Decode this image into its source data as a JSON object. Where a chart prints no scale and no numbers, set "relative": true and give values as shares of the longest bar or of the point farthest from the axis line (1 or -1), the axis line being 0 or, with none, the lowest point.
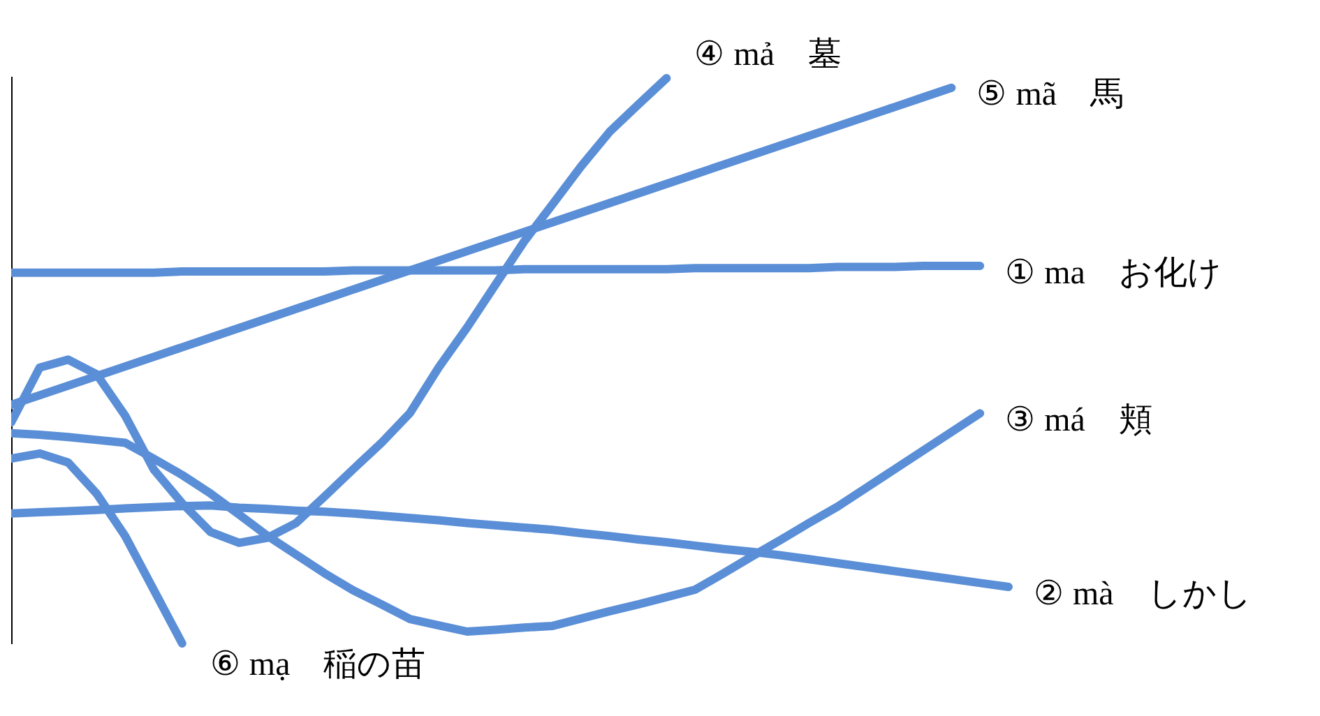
{
  "chart_data": {
    "type": "line",
    "relative": true,
    "tick_labels": false,
    "grid": false,
    "legend": false,
    "marker": "none",
    "line_style": "solid",
    "categories": [
      null,
      null,
      null,
      null,
      null,
      null,
      null,
      null,
      null,
      null,
      null,
      null,
      null,
      null,
      null,
      null,
      null,
      null,
      null,
      null,
      null,
      null,
      null,
      null,
      null,
      null,
      null,
      null,
      null,
      null,
      null,
      null,
      null,
      null,
      null,
      null
    ],
    "series": [
      {
        "name": "① ma　お化け",
        "color": "#5a8ed6",
        "values": [
          0.656,
          0.656,
          0.656,
          0.656,
          0.656,
          0.656,
          0.658,
          0.658,
          0.658,
          0.658,
          0.658,
          0.658,
          0.66,
          0.66,
          0.66,
          0.66,
          0.66,
          0.66,
          0.662,
          0.662,
          0.662,
          0.662,
          0.662,
          0.662,
          0.664,
          0.664,
          0.664,
          0.664,
          0.664,
          0.666,
          0.666,
          0.666,
          0.668,
          0.668,
          0.668,
          null
        ]
      },
      {
        "name": "② mà　しかし",
        "color": "#5a8ed6",
        "values": [
          0.23,
          0.232,
          0.234,
          0.236,
          0.239,
          0.241,
          0.243,
          0.244,
          0.24,
          0.238,
          0.235,
          0.233,
          0.23,
          0.226,
          0.222,
          0.218,
          0.213,
          0.209,
          0.205,
          0.201,
          0.195,
          0.19,
          0.184,
          0.179,
          0.173,
          0.167,
          0.162,
          0.156,
          0.149,
          0.142,
          0.135,
          0.128,
          0.121,
          0.114,
          0.107,
          0.1
        ]
      },
      {
        "name": "③ má　頬",
        "color": "#5a8ed6",
        "values": [
          0.372,
          0.369,
          0.365,
          0.36,
          0.355,
          0.327,
          0.298,
          0.265,
          0.228,
          0.19,
          0.157,
          0.124,
          0.094,
          0.069,
          0.043,
          0.032,
          0.021,
          0.024,
          0.028,
          0.031,
          0.044,
          0.057,
          0.069,
          0.082,
          0.095,
          0.124,
          0.154,
          0.183,
          0.213,
          0.242,
          0.275,
          0.308,
          0.341,
          0.374,
          0.407,
          null
        ]
      },
      {
        "name": "④ mả　墓",
        "color": "#5a8ed6",
        "values": [
          0.391,
          0.488,
          0.502,
          0.476,
          0.403,
          0.308,
          0.248,
          0.197,
          0.178,
          0.187,
          0.213,
          0.26,
          0.308,
          0.355,
          0.408,
          0.488,
          0.559,
          0.635,
          0.711,
          0.777,
          0.844,
          0.905,
          0.953,
          1,
          null,
          null,
          null,
          null,
          null,
          null,
          null,
          null,
          null,
          null,
          null,
          null
        ]
      },
      {
        "name": "⑤ mã　馬",
        "color": "#5a8ed6",
        "values": [
          0.422,
          0.439,
          0.456,
          0.473,
          0.49,
          0.507,
          0.524,
          0.541,
          0.558,
          0.575,
          0.592,
          0.609,
          0.626,
          0.643,
          0.66,
          0.677,
          0.694,
          0.711,
          0.728,
          0.745,
          0.762,
          0.779,
          0.796,
          0.813,
          0.83,
          0.847,
          0.864,
          0.881,
          0.898,
          0.915,
          0.932,
          0.949,
          0.966,
          0.983,
          null,
          null
        ]
      },
      {
        "name": "⑥ mạ　稲の苗",
        "color": "#5a8ed6",
        "values": [
          0.327,
          0.336,
          0.32,
          0.265,
          0.19,
          0.095,
          0,
          null,
          null,
          null,
          null,
          null,
          null,
          null,
          null,
          null,
          null,
          null,
          null,
          null,
          null,
          null,
          null,
          null,
          null,
          null,
          null,
          null,
          null,
          null,
          null,
          null,
          null,
          null,
          null,
          null
        ]
      }
    ]
  }
}
